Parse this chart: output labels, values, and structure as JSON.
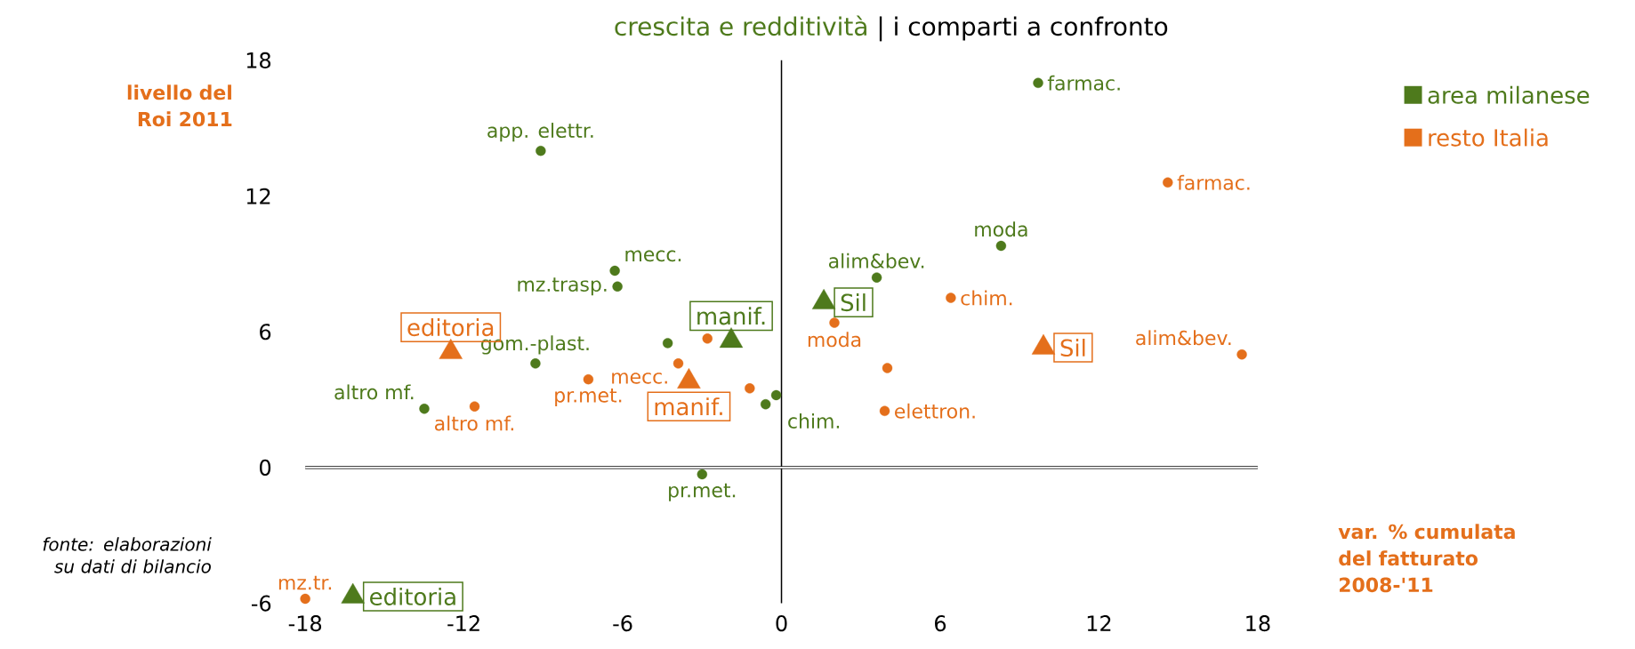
{
  "chart_data": {
    "type": "scatter",
    "title": "crescita e redditività",
    "subtitle": "| i comparti a confronto",
    "xlabel": "var. % cumulata del  fatturato 2008-'11",
    "ylabel": "livello del Roi 2011",
    "annotations": [
      "fonte: elaborazioni su dati di bilancio"
    ],
    "xlim": [
      -18,
      18
    ],
    "ylim": [
      -6,
      18
    ],
    "ref_lines": [
      {
        "axis": "x",
        "value": 0
      },
      {
        "axis": "y",
        "value": 0
      }
    ],
    "xticks": [
      -18,
      -12,
      -6,
      0,
      6,
      12,
      18
    ],
    "yticks": [
      -6,
      0,
      6,
      12,
      18
    ],
    "legend": "top right",
    "series": [
      {
        "name": "area milanese",
        "color": "#4e7a1c",
        "marker": "circle",
        "x": [
          9.7,
          -9.1,
          8.3,
          3.6,
          -6.3,
          -6.2,
          -9.3,
          -4.3,
          -13.5,
          -0.6,
          -0.2,
          -3.0
        ],
        "values": [
          17.0,
          14.0,
          9.8,
          8.4,
          8.7,
          8.0,
          4.6,
          5.5,
          2.6,
          2.8,
          3.2,
          -0.3
        ],
        "value_labels": [
          "farmac.",
          "app. elettr.",
          "moda",
          "alim&bev.",
          "mecc.",
          "mz.trasp.",
          "gom.-plast.",
          null,
          "altro mf.",
          "chim.",
          null,
          "pr.met."
        ]
      },
      {
        "name": "resto Italia",
        "color": "#e46f1b",
        "marker": "circle",
        "x": [
          14.6,
          17.4,
          6.4,
          2.0,
          4.0,
          3.9,
          -2.8,
          -3.9,
          -7.3,
          -1.2,
          -11.6,
          -18.0
        ],
        "values": [
          12.6,
          5.0,
          7.5,
          6.4,
          4.4,
          2.5,
          5.7,
          4.6,
          3.9,
          3.5,
          2.7,
          -5.8
        ],
        "value_labels": [
          "farmac.",
          "alim&bev.",
          "chim.",
          "moda",
          null,
          "elettron.",
          null,
          "mecc.",
          "pr.met.",
          null,
          "altro mf.",
          "mz.tr."
        ]
      },
      {
        "color": "#4e7a1c",
        "marker": "triangle",
        "x": [
          -1.9,
          1.6,
          -16.2
        ],
        "values": [
          5.6,
          7.3,
          -5.7
        ],
        "value_labels": [
          "manif.",
          "Sil",
          "editoria"
        ]
      },
      {
        "color": "#e46f1b",
        "marker": "triangle",
        "x": [
          -12.5,
          -3.5,
          9.9
        ],
        "values": [
          5.1,
          3.8,
          5.3
        ],
        "value_labels": [
          "editoria",
          "manif.",
          "Sil"
        ]
      }
    ]
  }
}
